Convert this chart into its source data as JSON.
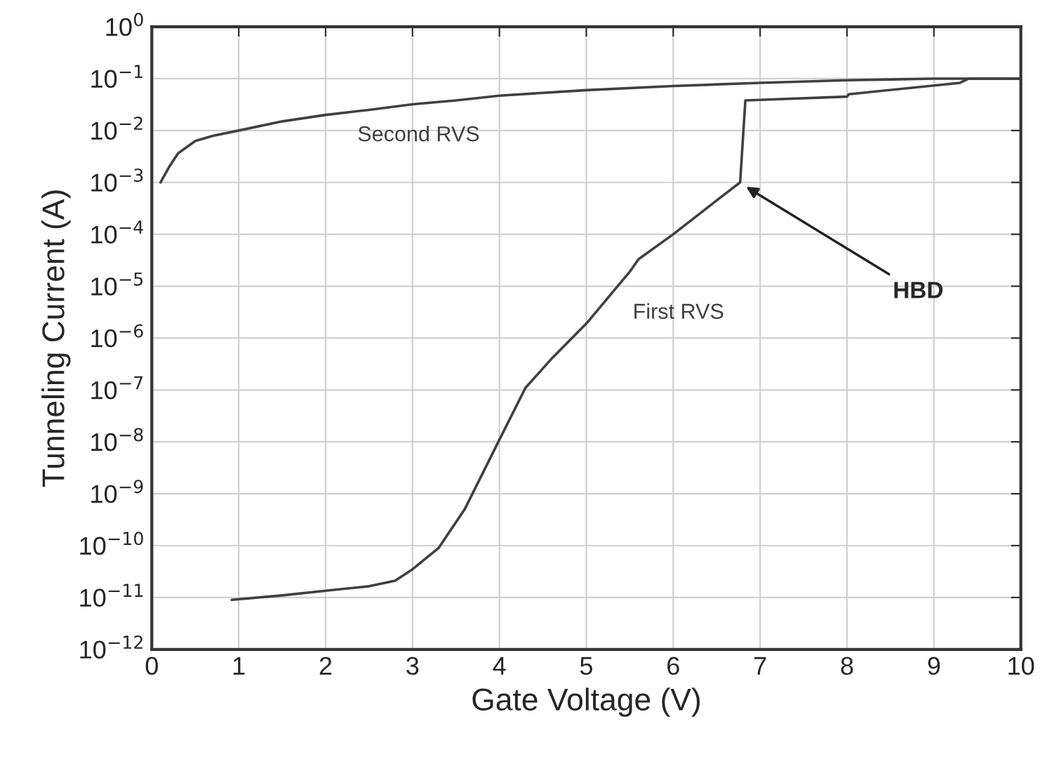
{
  "chart_data": {
    "type": "line",
    "xlabel": "Gate Voltage (V)",
    "ylabel": "Tunneling Current (A)",
    "log": "y",
    "grid": true,
    "legend": false,
    "marker": "none",
    "line_style": "solid",
    "xlim": [
      0,
      10
    ],
    "xticks": [
      0,
      1,
      2,
      3,
      4,
      5,
      6,
      7,
      8,
      9,
      10
    ],
    "ylim": [
      1e-12,
      1
    ],
    "yticks": [
      {
        "value": 1e-12,
        "label": "10$^{−12}$"
      },
      {
        "value": 1e-11,
        "label": "10$^{−11}$"
      },
      {
        "value": 1e-10,
        "label": "10$^{−10}$"
      },
      {
        "value": 1e-09,
        "label": "10$^{−9}$"
      },
      {
        "value": 1e-08,
        "label": "10$^{−8}$"
      },
      {
        "value": 1e-07,
        "label": "10$^{−7}$"
      },
      {
        "value": 1e-06,
        "label": "10$^{−6}$"
      },
      {
        "value": 1e-05,
        "label": "10$^{−5}$"
      },
      {
        "value": 0.0001,
        "label": "10$^{−4}$"
      },
      {
        "value": 0.001,
        "label": "10$^{−3}$"
      },
      {
        "value": 0.01,
        "label": "10$^{−2}$"
      },
      {
        "value": 0.1,
        "label": "10$^{−1}$"
      },
      {
        "value": 1,
        "label": "10$^{0}$"
      }
    ],
    "series": [
      {
        "color": "#404040",
        "x": [
          0.1,
          0.2,
          0.3,
          0.5,
          0.7,
          1,
          1.5,
          2,
          2.5,
          3,
          3.5,
          4,
          5,
          6,
          7,
          8,
          9,
          10
        ],
        "values": [
          0.001,
          0.002,
          0.0036,
          0.0063,
          0.0079,
          0.01,
          0.015,
          0.02,
          0.025,
          0.032,
          0.038,
          0.047,
          0.06,
          0.072,
          0.083,
          0.093,
          0.1,
          0.1
        ]
      },
      {
        "color": "#404040",
        "x": [
          0.92,
          1.5,
          2,
          2.5,
          2.8,
          3,
          3.3,
          3.6,
          4,
          4.3,
          4.6,
          5,
          5.5,
          5.6,
          6,
          6.5,
          6.77,
          6.83,
          8,
          8.02,
          9.3,
          9.4,
          10
        ],
        "values": [
          9e-12,
          1.1e-11,
          1.35e-11,
          1.65e-11,
          2.1e-11,
          3.5e-11,
          9e-11,
          5e-10,
          1.1e-08,
          1.1e-07,
          4e-07,
          1.9e-06,
          1.9e-05,
          3.3e-05,
          0.0001,
          0.00045,
          0.001,
          0.038,
          0.045,
          0.05,
          0.083,
          0.1,
          0.1
        ]
      }
    ],
    "annotations": [
      "Second RVS",
      "First RVS",
      {
        "text": "HBD",
        "x": 6.8,
        "y": 0.0009
      }
    ]
  }
}
